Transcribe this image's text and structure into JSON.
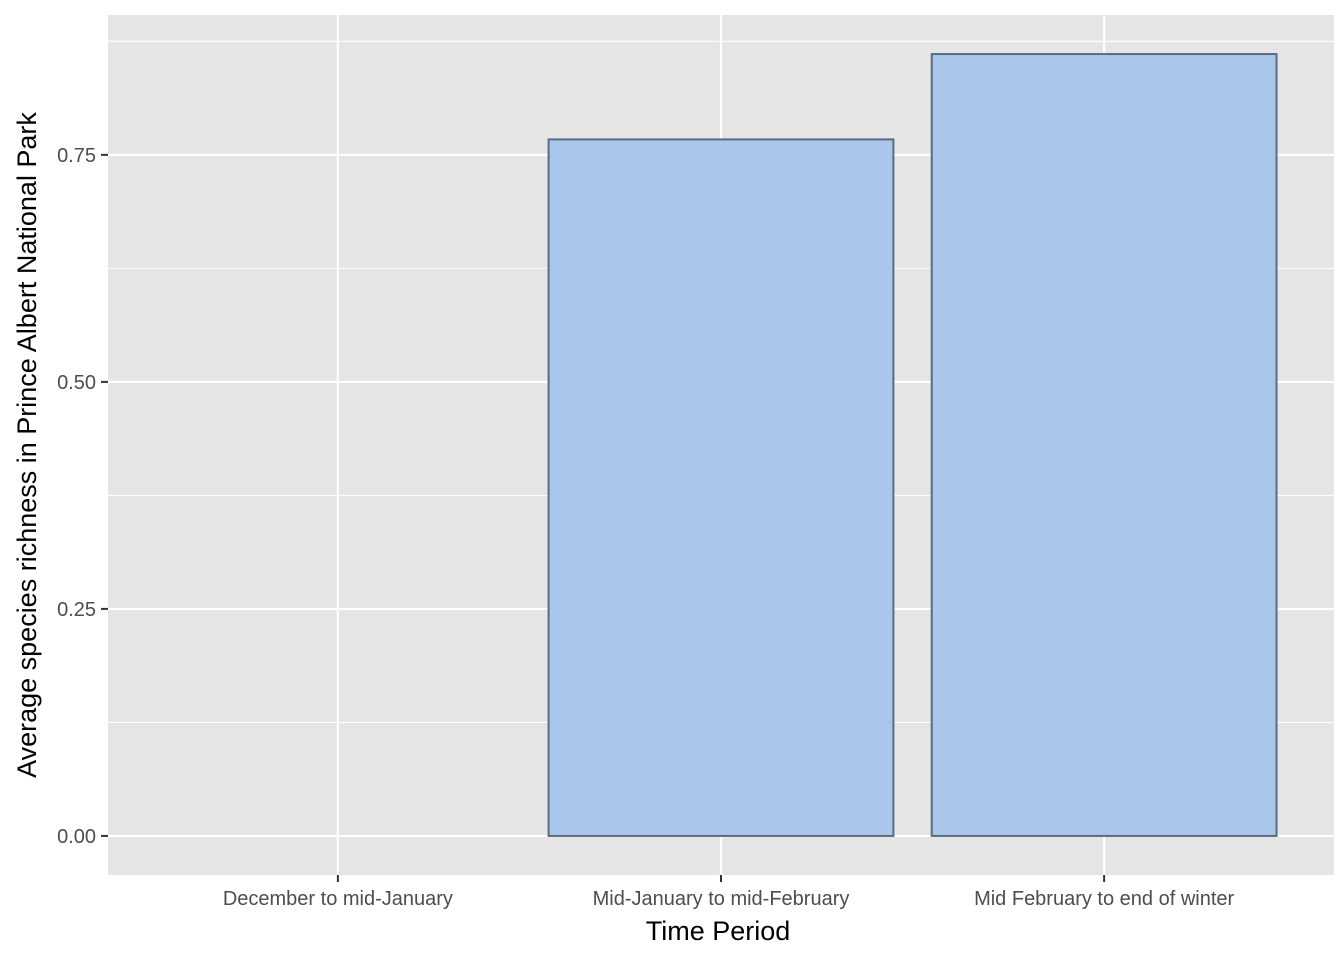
{
  "chart_data": {
    "type": "bar",
    "title": "",
    "xlabel": "Time Period",
    "ylabel": "Average species richness in Prince Albert National Park",
    "categories": [
      "December to mid-January",
      "Mid-January to mid-February",
      "Mid February to end of winter"
    ],
    "values": [
      0.0,
      0.767,
      0.861
    ],
    "ylim": [
      -0.043,
      0.904
    ],
    "yticks": [
      0.0,
      0.25,
      0.5,
      0.75
    ],
    "ytick_labels": [
      "0.00",
      "0.25",
      "0.50",
      "0.75"
    ],
    "grid": true,
    "legend": "none",
    "colors": {
      "panel": "#e5e5e5",
      "grid": "#ffffff",
      "bar_fill": "#aac6ea",
      "bar_outline": "#5b6b80",
      "tick": "#333333",
      "tick_label": "#4d4d4d",
      "axis_title": "#000000"
    }
  }
}
